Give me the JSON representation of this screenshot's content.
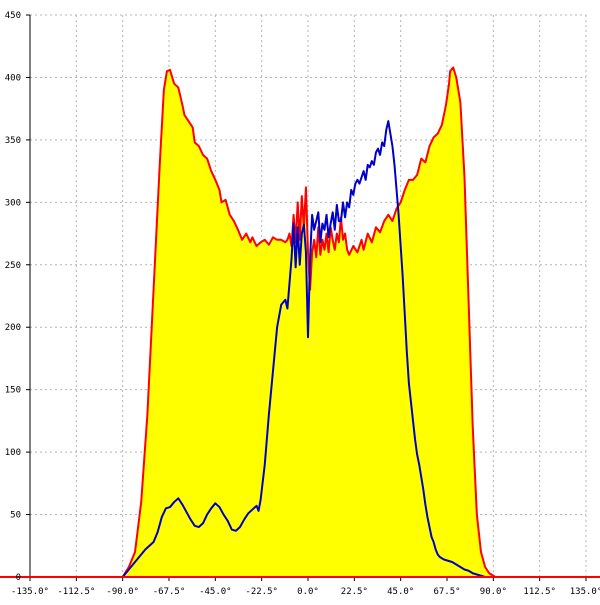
{
  "chart_data": {
    "type": "area",
    "title": "",
    "xlabel": "",
    "ylabel": "",
    "xlim": [
      -135,
      135
    ],
    "ylim": [
      0,
      450
    ],
    "grid": true,
    "x_ticks": [
      -135,
      -112.5,
      -90,
      -67.5,
      -45,
      -22.5,
      0,
      22.5,
      45,
      67.5,
      90,
      112.5,
      135
    ],
    "x_tick_labels": [
      "-135.0°",
      "-112.5°",
      "-90.0°",
      "-67.5°",
      "-45.0°",
      "-22.5°",
      "0.0°",
      "22.5°",
      "45.0°",
      "67.5°",
      "90.0°",
      "112.5°",
      "135.0°"
    ],
    "y_ticks": [
      0,
      50,
      100,
      150,
      200,
      250,
      300,
      350,
      400,
      450
    ],
    "y_tick_labels": [
      "0",
      "50",
      "100",
      "150",
      "200",
      "250",
      "300",
      "350",
      "400",
      "450"
    ],
    "series": [
      {
        "color": "#ff0000",
        "fill": "#ffff00",
        "style": "filled-area",
        "points": [
          [
            -135,
            0
          ],
          [
            -90,
            0
          ],
          [
            -87,
            8
          ],
          [
            -84,
            20
          ],
          [
            -81,
            60
          ],
          [
            -78,
            130
          ],
          [
            -75,
            230
          ],
          [
            -72,
            330
          ],
          [
            -70,
            390
          ],
          [
            -68.5,
            405
          ],
          [
            -67,
            406
          ],
          [
            -65,
            395
          ],
          [
            -63,
            392
          ],
          [
            -61,
            378
          ],
          [
            -60,
            370
          ],
          [
            -58,
            365
          ],
          [
            -56,
            360
          ],
          [
            -55,
            348
          ],
          [
            -53,
            345
          ],
          [
            -51,
            338
          ],
          [
            -49,
            335
          ],
          [
            -47,
            325
          ],
          [
            -45,
            318
          ],
          [
            -43,
            310
          ],
          [
            -42,
            300
          ],
          [
            -40,
            302
          ],
          [
            -38,
            290
          ],
          [
            -36,
            285
          ],
          [
            -34,
            278
          ],
          [
            -32,
            270
          ],
          [
            -30,
            275
          ],
          [
            -28,
            268
          ],
          [
            -27,
            272
          ],
          [
            -25,
            265
          ],
          [
            -23,
            268
          ],
          [
            -21,
            270
          ],
          [
            -19,
            266
          ],
          [
            -17,
            272
          ],
          [
            -15,
            270
          ],
          [
            -13,
            270
          ],
          [
            -11,
            268
          ],
          [
            -10,
            270
          ],
          [
            -9,
            275
          ],
          [
            -8,
            265
          ],
          [
            -7,
            290
          ],
          [
            -6,
            268
          ],
          [
            -5,
            300
          ],
          [
            -4,
            270
          ],
          [
            -3,
            305
          ],
          [
            -2,
            280
          ],
          [
            -1,
            312
          ],
          [
            0,
            260
          ],
          [
            1,
            230
          ],
          [
            2,
            260
          ],
          [
            3,
            270
          ],
          [
            4,
            256
          ],
          [
            5,
            280
          ],
          [
            6,
            258
          ],
          [
            7,
            270
          ],
          [
            8,
            262
          ],
          [
            9,
            275
          ],
          [
            10,
            260
          ],
          [
            11,
            280
          ],
          [
            12,
            270
          ],
          [
            13,
            262
          ],
          [
            14,
            275
          ],
          [
            15,
            268
          ],
          [
            16,
            288
          ],
          [
            17,
            270
          ],
          [
            18,
            275
          ],
          [
            19,
            262
          ],
          [
            20,
            258
          ],
          [
            22,
            265
          ],
          [
            24,
            260
          ],
          [
            26,
            270
          ],
          [
            27,
            262
          ],
          [
            29,
            275
          ],
          [
            31,
            268
          ],
          [
            33,
            280
          ],
          [
            35,
            276
          ],
          [
            37,
            285
          ],
          [
            39,
            290
          ],
          [
            41,
            285
          ],
          [
            43,
            295
          ],
          [
            45,
            300
          ],
          [
            47,
            310
          ],
          [
            49,
            318
          ],
          [
            51,
            318
          ],
          [
            53,
            322
          ],
          [
            55,
            335
          ],
          [
            57,
            332
          ],
          [
            59,
            345
          ],
          [
            61,
            352
          ],
          [
            63,
            355
          ],
          [
            65,
            362
          ],
          [
            67,
            378
          ],
          [
            68.5,
            395
          ],
          [
            69,
            405
          ],
          [
            70.5,
            408
          ],
          [
            72,
            400
          ],
          [
            74,
            380
          ],
          [
            76,
            320
          ],
          [
            78,
            220
          ],
          [
            80,
            120
          ],
          [
            82,
            50
          ],
          [
            84,
            20
          ],
          [
            86,
            8
          ],
          [
            88,
            3
          ],
          [
            90,
            1
          ],
          [
            91,
            0
          ],
          [
            135,
            0
          ]
        ]
      },
      {
        "color": "#0000c8",
        "style": "line",
        "points": [
          [
            -90,
            0
          ],
          [
            -87,
            6
          ],
          [
            -84,
            12
          ],
          [
            -81,
            18
          ],
          [
            -79,
            22
          ],
          [
            -77,
            25
          ],
          [
            -75,
            28
          ],
          [
            -73,
            36
          ],
          [
            -71,
            48
          ],
          [
            -69,
            55
          ],
          [
            -67,
            56
          ],
          [
            -65,
            60
          ],
          [
            -63,
            63
          ],
          [
            -61,
            58
          ],
          [
            -59,
            52
          ],
          [
            -57,
            46
          ],
          [
            -55,
            41
          ],
          [
            -53,
            40
          ],
          [
            -51,
            43
          ],
          [
            -49,
            50
          ],
          [
            -47,
            55
          ],
          [
            -45,
            59
          ],
          [
            -43,
            56
          ],
          [
            -41,
            50
          ],
          [
            -39,
            45
          ],
          [
            -37,
            38
          ],
          [
            -35,
            37
          ],
          [
            -33,
            40
          ],
          [
            -31,
            46
          ],
          [
            -29,
            51
          ],
          [
            -27,
            54
          ],
          [
            -25,
            57
          ],
          [
            -24,
            53
          ],
          [
            -23,
            62
          ],
          [
            -21,
            90
          ],
          [
            -19,
            130
          ],
          [
            -17,
            165
          ],
          [
            -15,
            200
          ],
          [
            -13,
            218
          ],
          [
            -11,
            222
          ],
          [
            -10,
            215
          ],
          [
            -9,
            235
          ],
          [
            -8,
            255
          ],
          [
            -7,
            283
          ],
          [
            -6,
            248
          ],
          [
            -5,
            280
          ],
          [
            -4,
            250
          ],
          [
            -3,
            275
          ],
          [
            -2,
            282
          ],
          [
            -1,
            260
          ],
          [
            0,
            192
          ],
          [
            1,
            255
          ],
          [
            2,
            290
          ],
          [
            3,
            278
          ],
          [
            4,
            285
          ],
          [
            5,
            292
          ],
          [
            6,
            268
          ],
          [
            7,
            283
          ],
          [
            8,
            278
          ],
          [
            9,
            290
          ],
          [
            10,
            272
          ],
          [
            11,
            283
          ],
          [
            12,
            292
          ],
          [
            13,
            278
          ],
          [
            14,
            298
          ],
          [
            15,
            285
          ],
          [
            16,
            285
          ],
          [
            17,
            300
          ],
          [
            18,
            288
          ],
          [
            19,
            300
          ],
          [
            20,
            296
          ],
          [
            21,
            310
          ],
          [
            22,
            306
          ],
          [
            23,
            315
          ],
          [
            24,
            318
          ],
          [
            25,
            315
          ],
          [
            26,
            320
          ],
          [
            27,
            325
          ],
          [
            28,
            318
          ],
          [
            29,
            330
          ],
          [
            30,
            328
          ],
          [
            31,
            333
          ],
          [
            32,
            330
          ],
          [
            33,
            340
          ],
          [
            34,
            343
          ],
          [
            35,
            338
          ],
          [
            36,
            348
          ],
          [
            37,
            345
          ],
          [
            38,
            358
          ],
          [
            39,
            365
          ],
          [
            40,
            355
          ],
          [
            41,
            345
          ],
          [
            42,
            330
          ],
          [
            43,
            310
          ],
          [
            44,
            290
          ],
          [
            45,
            265
          ],
          [
            46,
            240
          ],
          [
            47,
            210
          ],
          [
            48,
            180
          ],
          [
            49,
            155
          ],
          [
            50,
            140
          ],
          [
            51,
            125
          ],
          [
            52,
            110
          ],
          [
            53,
            98
          ],
          [
            54,
            90
          ],
          [
            55,
            80
          ],
          [
            56,
            70
          ],
          [
            57,
            58
          ],
          [
            58,
            48
          ],
          [
            59,
            40
          ],
          [
            60,
            32
          ],
          [
            61,
            28
          ],
          [
            62,
            22
          ],
          [
            63,
            18
          ],
          [
            64,
            16
          ],
          [
            66,
            14
          ],
          [
            68,
            13
          ],
          [
            70,
            12
          ],
          [
            72,
            10
          ],
          [
            74,
            8
          ],
          [
            76,
            6
          ],
          [
            78,
            5
          ],
          [
            80,
            3
          ],
          [
            82,
            2
          ],
          [
            84,
            1
          ],
          [
            86,
            0
          ]
        ]
      }
    ]
  }
}
